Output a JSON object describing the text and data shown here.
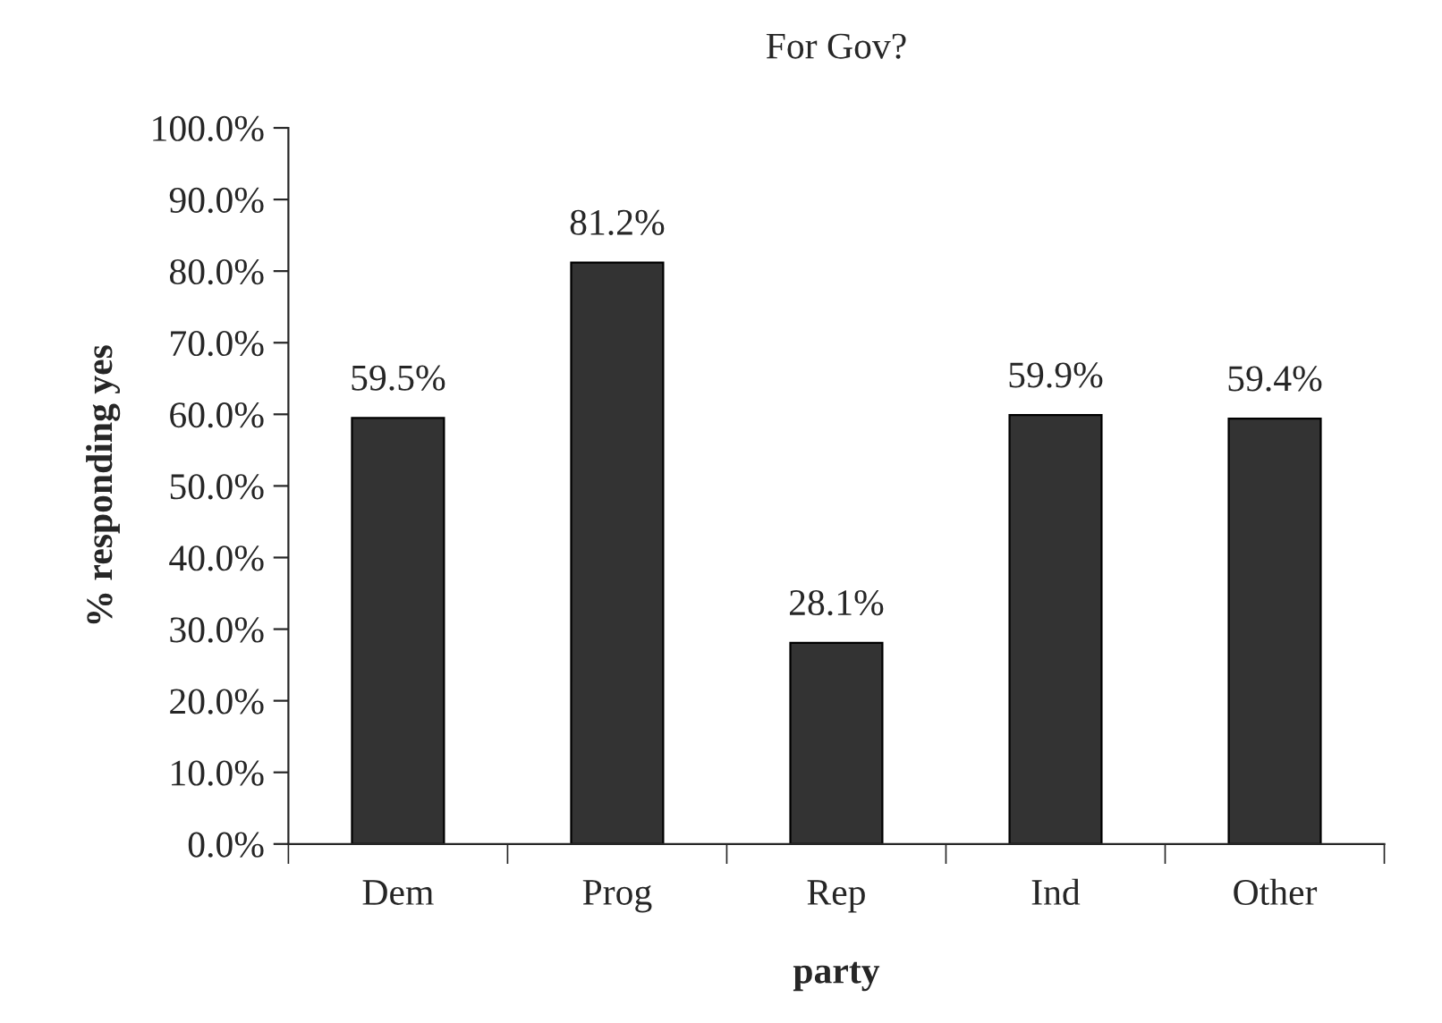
{
  "chart_data": {
    "type": "bar",
    "title": "For Gov?",
    "xlabel": "party",
    "ylabel": "% responding yes",
    "categories": [
      "Dem",
      "Prog",
      "Rep",
      "Ind",
      "Other"
    ],
    "values": [
      59.5,
      81.2,
      28.1,
      59.9,
      59.4
    ],
    "color": "#333333",
    "value_labels": [
      "59.5%",
      "81.2%",
      "28.1%",
      "59.9%",
      "59.4%"
    ],
    "ylim": [
      0,
      100
    ],
    "yticks": [
      {
        "value": 0,
        "label": "0.0%"
      },
      {
        "value": 10,
        "label": "10.0%"
      },
      {
        "value": 20,
        "label": "20.0%"
      },
      {
        "value": 30,
        "label": "30.0%"
      },
      {
        "value": 40,
        "label": "40.0%"
      },
      {
        "value": 50,
        "label": "50.0%"
      },
      {
        "value": 60,
        "label": "60.0%"
      },
      {
        "value": 70,
        "label": "70.0%"
      },
      {
        "value": 80,
        "label": "80.0%"
      },
      {
        "value": 90,
        "label": "90.0%"
      },
      {
        "value": 100,
        "label": "100.0%"
      }
    ],
    "grid": false,
    "legend": false
  }
}
